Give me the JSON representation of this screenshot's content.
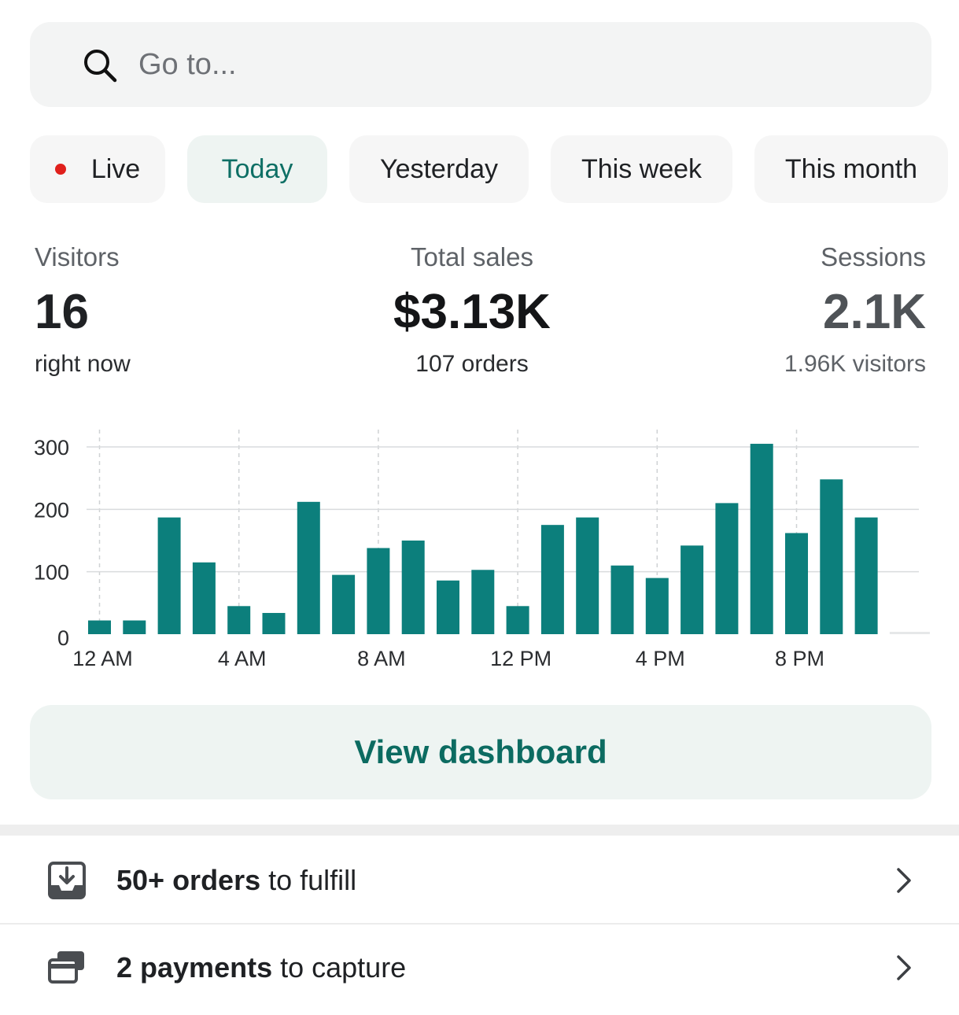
{
  "search": {
    "placeholder": "Go to..."
  },
  "tabs": [
    {
      "label": "Live",
      "live": true
    },
    {
      "label": "Today",
      "active": true
    },
    {
      "label": "Yesterday"
    },
    {
      "label": "This week"
    },
    {
      "label": "This month"
    }
  ],
  "stats": {
    "visitors": {
      "label": "Visitors",
      "value": "16",
      "sub": "right now"
    },
    "total_sales": {
      "label": "Total sales",
      "value": "$3.13K",
      "sub": "107 orders"
    },
    "sessions": {
      "label": "Sessions",
      "value": "2.1K",
      "sub": "1.96K visitors"
    }
  },
  "chart_data": {
    "type": "bar",
    "categories": [
      "12 AM",
      "1 AM",
      "2 AM",
      "3 AM",
      "4 AM",
      "5 AM",
      "6 AM",
      "7 AM",
      "8 AM",
      "9 AM",
      "10 AM",
      "11 AM",
      "12 PM",
      "1 PM",
      "2 PM",
      "3 PM",
      "4 PM",
      "5 PM",
      "6 PM",
      "7 PM",
      "8 PM",
      "9 PM",
      "10 PM",
      "11 PM"
    ],
    "values": [
      22,
      22,
      187,
      115,
      45,
      34,
      212,
      95,
      138,
      150,
      86,
      103,
      45,
      175,
      187,
      110,
      90,
      142,
      210,
      305,
      162,
      248,
      187,
      0
    ],
    "x_tick_labels": [
      "12 AM",
      "4 AM",
      "8 AM",
      "12 PM",
      "4 PM",
      "8 PM"
    ],
    "y_ticks": [
      0,
      100,
      200,
      300
    ],
    "ylim": [
      0,
      300
    ],
    "color": "#0c7f7c",
    "grid": true
  },
  "cta": {
    "label": "View dashboard"
  },
  "tasks": [
    {
      "bold": "50+ orders",
      "rest": " to fulfill",
      "icon": "download-tray-icon"
    },
    {
      "bold": "2 payments",
      "rest": " to capture",
      "icon": "credit-cards-icon"
    }
  ],
  "colors": {
    "accent": "#0c6b61",
    "bar": "#0c7f7c",
    "live": "#e0201c"
  }
}
